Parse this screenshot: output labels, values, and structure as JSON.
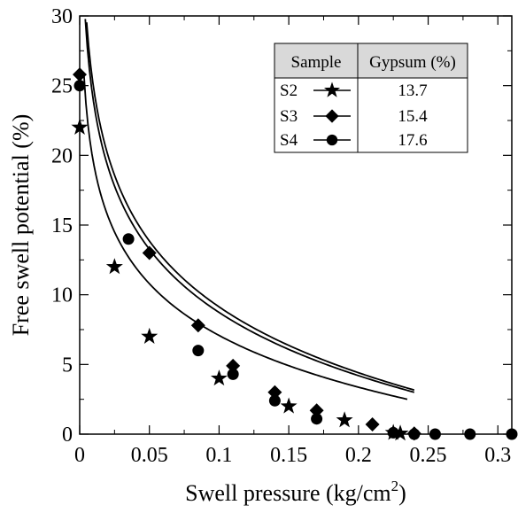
{
  "chart_data": {
    "type": "scatter",
    "title": "",
    "xlabel": "Swell pressure (kg/cm",
    "xlabel_superscript": "2",
    "xlabel_suffix": ")",
    "ylabel": "Free swell potential (%)",
    "xlim": [
      0,
      0.31
    ],
    "ylim": [
      0,
      30
    ],
    "x_ticks": [
      "0",
      "0.05",
      "0.1",
      "0.15",
      "0.2",
      "0.25",
      "0.3"
    ],
    "y_ticks": [
      "0",
      "5",
      "10",
      "15",
      "20",
      "25",
      "30"
    ],
    "grid": false,
    "legend_position": "top-right",
    "legend_table": {
      "headers": [
        "Sample",
        "Gypsum (%)"
      ],
      "rows": [
        {
          "sample": "S2",
          "marker": "star",
          "gypsum": "13.7"
        },
        {
          "sample": "S3",
          "marker": "diamond",
          "gypsum": "15.4"
        },
        {
          "sample": "S4",
          "marker": "circle",
          "gypsum": "17.6"
        }
      ]
    },
    "series": [
      {
        "name": "S2",
        "marker": "star",
        "color": "#000000",
        "points": [
          [
            0,
            22
          ],
          [
            0.025,
            12
          ],
          [
            0.05,
            7
          ],
          [
            0.1,
            4
          ],
          [
            0.15,
            2
          ],
          [
            0.19,
            1
          ],
          [
            0.225,
            0.1
          ],
          [
            0.23,
            0.05
          ]
        ]
      },
      {
        "name": "S3",
        "marker": "diamond",
        "color": "#000000",
        "points": [
          [
            0,
            25.8
          ],
          [
            0.05,
            13
          ],
          [
            0.085,
            7.8
          ],
          [
            0.11,
            4.9
          ],
          [
            0.14,
            3
          ],
          [
            0.17,
            1.7
          ],
          [
            0.21,
            0.7
          ],
          [
            0.24,
            0.05
          ]
        ]
      },
      {
        "name": "S4",
        "marker": "circle",
        "color": "#000000",
        "points": [
          [
            0,
            25
          ],
          [
            0.035,
            14
          ],
          [
            0.085,
            6
          ],
          [
            0.11,
            4.3
          ],
          [
            0.14,
            2.4
          ],
          [
            0.17,
            1.1
          ],
          [
            0.225,
            0.1
          ],
          [
            0.24,
            0
          ],
          [
            0.255,
            0
          ],
          [
            0.28,
            0
          ],
          [
            0.31,
            0
          ]
        ]
      }
    ],
    "fit_curves": [
      {
        "for": "S2",
        "a": 12.33,
        "b": 5.25,
        "x_range": [
          0.003,
          0.235
        ]
      },
      {
        "for": "S3",
        "a": 15.69,
        "b": 6.56,
        "x_range": [
          0.005,
          0.24
        ]
      },
      {
        "for": "S4",
        "a": 15.06,
        "b": 6.33,
        "x_range": [
          0.004,
          0.24
        ]
      }
    ]
  }
}
